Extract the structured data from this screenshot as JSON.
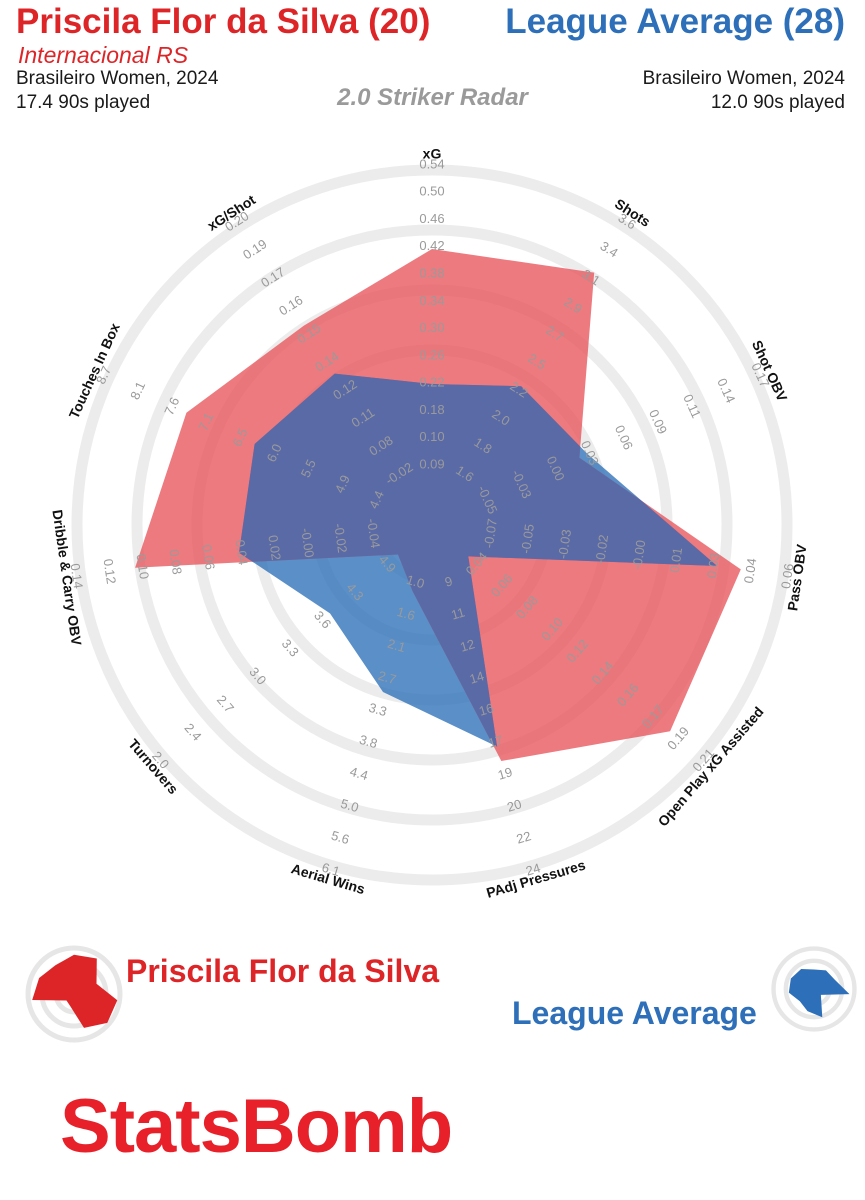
{
  "header": {
    "player_title": "Priscila Flor da Silva (20)",
    "team": "Internacional RS",
    "player_competition": "Brasileiro Women, 2024",
    "player_minutes": "17.4 90s played",
    "comparison_title": "League Average (28)",
    "comparison_competition": "Brasileiro Women, 2024",
    "comparison_minutes": "12.0 90s played",
    "radar_name": "2.0 Striker Radar"
  },
  "colors": {
    "player": "#e8545b",
    "league": "#2d6fb8",
    "player_text": "#dd2528",
    "league_text": "#2d6fb8",
    "ring": "#ececec",
    "tick_text": "#9a9a9a",
    "brand": "#e8202a"
  },
  "legend": {
    "player_label": "Priscila Flor da Silva",
    "league_label": "League Average"
  },
  "brand": "StatsBomb",
  "chart_data": {
    "type": "radar",
    "title": "2.0 Striker Radar",
    "metrics": [
      {
        "name": "xG",
        "ticks": [
          "0.09",
          "0.10",
          "0.18",
          "0.22",
          "0.26",
          "0.30",
          "0.34",
          "0.38",
          "0.42",
          "0.46",
          "0.50",
          "0.54"
        ]
      },
      {
        "name": "Shots",
        "ticks": [
          "1.6",
          "1.8",
          "2.0",
          "2.2",
          "2.5",
          "2.7",
          "2.9",
          "3.1",
          "3.4",
          "3.6"
        ]
      },
      {
        "name": "Shot OBV",
        "ticks": [
          "-0.05",
          "-0.03",
          "0.00",
          "0.03",
          "0.06",
          "0.09",
          "0.11",
          "0.14",
          "0.17"
        ]
      },
      {
        "name": "Pass OBV",
        "ticks": [
          "-0.07",
          "-0.05",
          "-0.03",
          "-0.02",
          "-0.00",
          "0.01",
          "0.03",
          "0.04",
          "0.06"
        ]
      },
      {
        "name": "Open Play xG Assisted",
        "ticks": [
          "0.04",
          "0.06",
          "0.08",
          "0.10",
          "0.12",
          "0.14",
          "0.16",
          "0.17",
          "0.19",
          "0.21"
        ]
      },
      {
        "name": "PAdj Pressures",
        "ticks": [
          "9",
          "11",
          "12",
          "14",
          "16",
          "17",
          "19",
          "20",
          "22",
          "24"
        ]
      },
      {
        "name": "Aerial Wins",
        "ticks": [
          "1.0",
          "1.6",
          "2.1",
          "2.7",
          "3.3",
          "3.8",
          "4.4",
          "5.0",
          "5.6",
          "6.1"
        ]
      },
      {
        "name": "Turnovers",
        "ticks": [
          "4.9",
          "4.3",
          "3.6",
          "3.3",
          "3.0",
          "2.7",
          "2.4",
          "2.0"
        ]
      },
      {
        "name": "Dribble & Carry OBV",
        "ticks": [
          "-0.04",
          "-0.02",
          "-0.00",
          "0.02",
          "0.04",
          "0.06",
          "0.08",
          "0.10",
          "0.12",
          "0.14"
        ]
      },
      {
        "name": "Touches In Box",
        "ticks": [
          "4.4",
          "4.9",
          "5.5",
          "6.0",
          "6.5",
          "7.1",
          "7.6",
          "8.1",
          "8.7"
        ]
      },
      {
        "name": "xG/Shot",
        "ticks": [
          "-0.02",
          "0.08",
          "0.11",
          "0.12",
          "0.14",
          "0.15",
          "0.16",
          "0.17",
          "0.19",
          "0.20"
        ]
      }
    ],
    "series": [
      {
        "name": "Priscila Flor da Silva",
        "values": [
          0.5,
          3.6,
          0.02,
          0.05,
          0.21,
          17,
          1.0,
          4.9,
          0.13,
          7.6,
          0.14
        ]
      },
      {
        "name": "League Average",
        "values": [
          0.26,
          2.5,
          0.03,
          0.04,
          0.06,
          16,
          4.0,
          4.0,
          0.04,
          4.9,
          0.12
        ]
      }
    ],
    "scaled": {
      "Priscila Flor da Silva": [
        0.82,
        0.9,
        0.44,
        0.94,
        0.95,
        0.72,
        0.13,
        0.05,
        0.9,
        0.8,
        0.69
      ],
      "League Average": [
        0.37,
        0.45,
        0.47,
        0.86,
        0.06,
        0.67,
        0.48,
        0.35,
        0.55,
        0.55,
        0.5
      ]
    }
  }
}
